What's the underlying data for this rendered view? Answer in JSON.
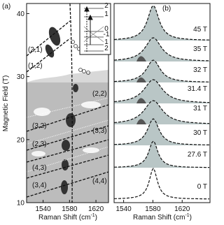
{
  "panel_a": {
    "label": "(a)",
    "ylabel": "Magnetic Field (T)",
    "xlabel": {
      "text": "Raman Shift (cm",
      "sup": "-1",
      "close": ")"
    },
    "ylim": [
      10,
      41.6
    ],
    "yticks": [
      10,
      20,
      30,
      40
    ],
    "xlim": [
      1515,
      1639
    ],
    "xticks": [
      1540,
      1580,
      1620
    ],
    "transition_labels": [
      "(2,1)",
      "(1,2)",
      "(2,2)",
      "(3,2)",
      "(2,3)",
      "(3,3)",
      "(4,3)",
      "(3,4)",
      "(4,4)"
    ],
    "inset_levels": [
      "2",
      "1",
      "0",
      "-1",
      "1",
      "2"
    ]
  },
  "panel_b": {
    "label": "(b)",
    "xlabel": {
      "text": "Raman Shift (cm",
      "sup": "-1",
      "close": ")"
    },
    "xlim": [
      1527,
      1658
    ],
    "xticks": [
      1540,
      1580,
      1620
    ],
    "field_labels": [
      "45 T",
      "35 T",
      "32 T",
      "31.4 T",
      "31 T",
      "30 T",
      "27.6 T",
      "0 T"
    ]
  }
}
